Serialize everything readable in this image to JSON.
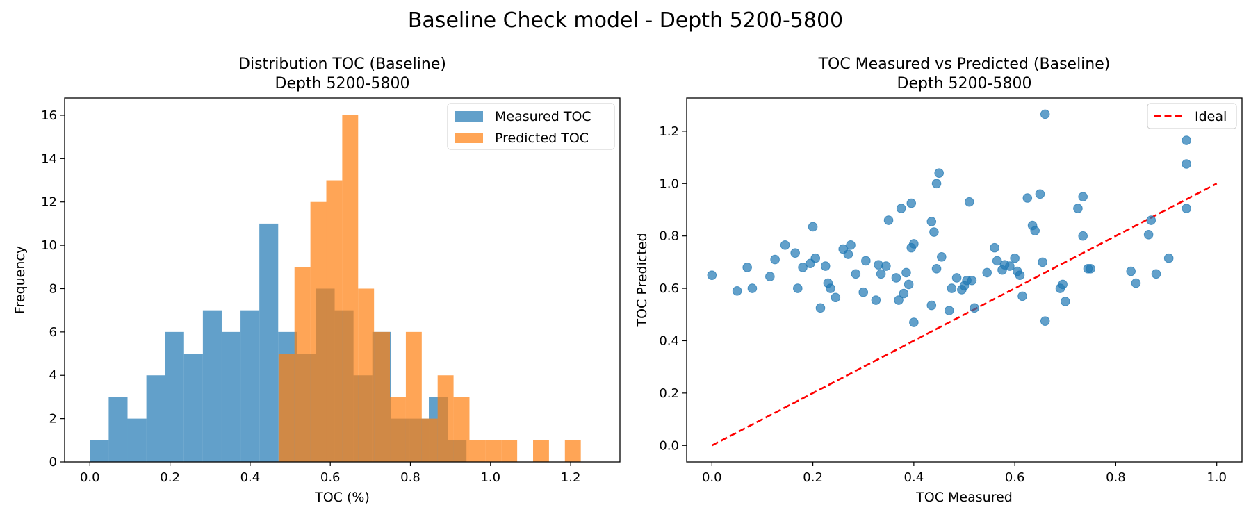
{
  "suptitle": "Baseline Check model - Depth 5200-5800",
  "chart_data": [
    {
      "type": "histogram",
      "title_line1": "Distribution TOC (Baseline)",
      "title_line2": "Depth 5200-5800",
      "xlabel": "TOC (%)",
      "ylabel": "Frequency",
      "xlim": [
        -0.063,
        1.323
      ],
      "ylim": [
        0,
        16.8
      ],
      "xticks": [
        0.0,
        0.2,
        0.4,
        0.6,
        0.8,
        1.0,
        1.2
      ],
      "xtick_labels": [
        "0.0",
        "0.2",
        "0.4",
        "0.6",
        "0.8",
        "1.0",
        "1.2"
      ],
      "yticks": [
        0,
        2,
        4,
        6,
        8,
        10,
        12,
        14,
        16
      ],
      "ytick_labels": [
        "0",
        "2",
        "4",
        "6",
        "8",
        "10",
        "12",
        "14",
        "16"
      ],
      "legend_position": "top-right",
      "series": [
        {
          "name": "Measured TOC",
          "color": "#1f77b4",
          "opacity": 0.7,
          "bin_edges": [
            0.0,
            0.047,
            0.094,
            0.141,
            0.188,
            0.235,
            0.282,
            0.329,
            0.376,
            0.423,
            0.47,
            0.517,
            0.564,
            0.611,
            0.658,
            0.705,
            0.752,
            0.799,
            0.846,
            0.893,
            0.94
          ],
          "counts": [
            1,
            3,
            2,
            4,
            6,
            5,
            7,
            6,
            7,
            11,
            6,
            5,
            8,
            7,
            4,
            6,
            2,
            2,
            3,
            1
          ]
        },
        {
          "name": "Predicted TOC",
          "color": "#ff7f0e",
          "opacity": 0.7,
          "bin_edges": [
            0.471,
            0.5107,
            0.5504,
            0.5901,
            0.6298,
            0.6695,
            0.7092,
            0.7489,
            0.7886,
            0.8283,
            0.868,
            0.9077,
            0.9474,
            0.9871,
            1.0268,
            1.0665,
            1.1062,
            1.1459,
            1.1856,
            1.2253,
            1.265
          ],
          "counts": [
            5,
            9,
            12,
            13,
            16,
            8,
            6,
            3,
            6,
            2,
            4,
            3,
            1,
            1,
            1,
            0,
            1,
            0,
            1,
            0
          ]
        }
      ]
    },
    {
      "type": "scatter",
      "title_line1": "TOC Measured vs Predicted (Baseline)",
      "title_line2": "Depth 5200-5800",
      "xlabel": "TOC Measured",
      "ylabel": "TOC Predicted",
      "xlim": [
        -0.05,
        1.05
      ],
      "ylim": [
        -0.063,
        1.327
      ],
      "xticks": [
        0.0,
        0.2,
        0.4,
        0.6,
        0.8,
        1.0
      ],
      "xtick_labels": [
        "0.0",
        "0.2",
        "0.4",
        "0.6",
        "0.8",
        "1.0"
      ],
      "yticks": [
        0.0,
        0.2,
        0.4,
        0.6,
        0.8,
        1.0,
        1.2
      ],
      "ytick_labels": [
        "0.0",
        "0.2",
        "0.4",
        "0.6",
        "0.8",
        "1.0",
        "1.2"
      ],
      "legend_position": "top-right",
      "ideal_line": {
        "name": "Ideal",
        "color": "#ff0000",
        "x": [
          0,
          1
        ],
        "y": [
          0,
          1
        ]
      },
      "point_color": "#1f77b4",
      "points": [
        [
          0.0,
          0.65
        ],
        [
          0.05,
          0.59
        ],
        [
          0.07,
          0.68
        ],
        [
          0.08,
          0.6
        ],
        [
          0.115,
          0.645
        ],
        [
          0.125,
          0.71
        ],
        [
          0.145,
          0.765
        ],
        [
          0.165,
          0.735
        ],
        [
          0.17,
          0.6
        ],
        [
          0.18,
          0.68
        ],
        [
          0.195,
          0.695
        ],
        [
          0.2,
          0.835
        ],
        [
          0.205,
          0.715
        ],
        [
          0.215,
          0.525
        ],
        [
          0.225,
          0.685
        ],
        [
          0.23,
          0.62
        ],
        [
          0.235,
          0.6
        ],
        [
          0.245,
          0.565
        ],
        [
          0.26,
          0.75
        ],
        [
          0.27,
          0.73
        ],
        [
          0.275,
          0.765
        ],
        [
          0.285,
          0.655
        ],
        [
          0.3,
          0.585
        ],
        [
          0.305,
          0.705
        ],
        [
          0.325,
          0.555
        ],
        [
          0.33,
          0.69
        ],
        [
          0.335,
          0.655
        ],
        [
          0.345,
          0.685
        ],
        [
          0.35,
          0.86
        ],
        [
          0.365,
          0.64
        ],
        [
          0.37,
          0.555
        ],
        [
          0.375,
          0.905
        ],
        [
          0.38,
          0.58
        ],
        [
          0.385,
          0.66
        ],
        [
          0.39,
          0.615
        ],
        [
          0.395,
          0.925
        ],
        [
          0.395,
          0.755
        ],
        [
          0.4,
          0.77
        ],
        [
          0.4,
          0.47
        ],
        [
          0.435,
          0.855
        ],
        [
          0.435,
          0.535
        ],
        [
          0.44,
          0.815
        ],
        [
          0.445,
          0.675
        ],
        [
          0.445,
          1.0
        ],
        [
          0.45,
          1.04
        ],
        [
          0.455,
          0.72
        ],
        [
          0.47,
          0.515
        ],
        [
          0.475,
          0.6
        ],
        [
          0.485,
          0.64
        ],
        [
          0.495,
          0.595
        ],
        [
          0.5,
          0.61
        ],
        [
          0.505,
          0.63
        ],
        [
          0.51,
          0.93
        ],
        [
          0.515,
          0.63
        ],
        [
          0.52,
          0.525
        ],
        [
          0.545,
          0.66
        ],
        [
          0.56,
          0.755
        ],
        [
          0.565,
          0.705
        ],
        [
          0.575,
          0.67
        ],
        [
          0.58,
          0.69
        ],
        [
          0.59,
          0.685
        ],
        [
          0.6,
          0.715
        ],
        [
          0.605,
          0.665
        ],
        [
          0.61,
          0.65
        ],
        [
          0.615,
          0.57
        ],
        [
          0.625,
          0.945
        ],
        [
          0.635,
          0.84
        ],
        [
          0.64,
          0.82
        ],
        [
          0.65,
          0.96
        ],
        [
          0.655,
          0.7
        ],
        [
          0.66,
          0.475
        ],
        [
          0.66,
          1.265
        ],
        [
          0.69,
          0.6
        ],
        [
          0.695,
          0.615
        ],
        [
          0.7,
          0.55
        ],
        [
          0.725,
          0.905
        ],
        [
          0.735,
          0.95
        ],
        [
          0.735,
          0.8
        ],
        [
          0.745,
          0.675
        ],
        [
          0.75,
          0.675
        ],
        [
          0.83,
          0.665
        ],
        [
          0.84,
          0.62
        ],
        [
          0.865,
          0.805
        ],
        [
          0.87,
          0.86
        ],
        [
          0.88,
          0.655
        ],
        [
          0.905,
          0.715
        ],
        [
          0.94,
          1.165
        ],
        [
          0.94,
          1.075
        ],
        [
          0.94,
          0.905
        ]
      ]
    }
  ]
}
